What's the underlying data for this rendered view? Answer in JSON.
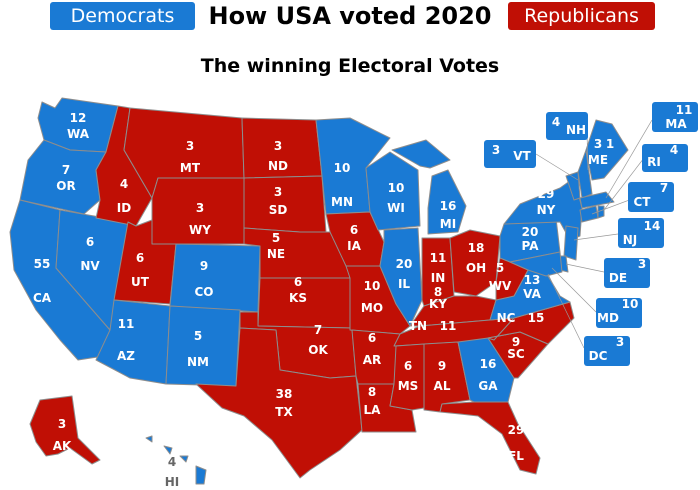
{
  "header": {
    "title": "How USA voted 2020",
    "subtitle": "The winning Electoral Votes",
    "legend_dem": "Democrats",
    "legend_rep": "Republicans"
  },
  "colors": {
    "dem": "#1a7ad4",
    "rep": "#c00f05"
  },
  "states": [
    {
      "abbr": "WA",
      "votes": "12",
      "party": "dem"
    },
    {
      "abbr": "OR",
      "votes": "7",
      "party": "dem"
    },
    {
      "abbr": "CA",
      "votes": "55",
      "party": "dem"
    },
    {
      "abbr": "NV",
      "votes": "6",
      "party": "dem"
    },
    {
      "abbr": "ID",
      "votes": "4",
      "party": "rep"
    },
    {
      "abbr": "MT",
      "votes": "3",
      "party": "rep"
    },
    {
      "abbr": "WY",
      "votes": "3",
      "party": "rep"
    },
    {
      "abbr": "UT",
      "votes": "6",
      "party": "rep"
    },
    {
      "abbr": "CO",
      "votes": "9",
      "party": "dem"
    },
    {
      "abbr": "AZ",
      "votes": "11",
      "party": "dem"
    },
    {
      "abbr": "NM",
      "votes": "5",
      "party": "dem"
    },
    {
      "abbr": "ND",
      "votes": "3",
      "party": "rep"
    },
    {
      "abbr": "SD",
      "votes": "3",
      "party": "rep"
    },
    {
      "abbr": "NE",
      "votes": "5",
      "party": "rep"
    },
    {
      "abbr": "KS",
      "votes": "6",
      "party": "rep"
    },
    {
      "abbr": "OK",
      "votes": "7",
      "party": "rep"
    },
    {
      "abbr": "TX",
      "votes": "38",
      "party": "rep"
    },
    {
      "abbr": "MN",
      "votes": "10",
      "party": "dem"
    },
    {
      "abbr": "IA",
      "votes": "6",
      "party": "rep"
    },
    {
      "abbr": "MO",
      "votes": "10",
      "party": "rep"
    },
    {
      "abbr": "AR",
      "votes": "6",
      "party": "rep"
    },
    {
      "abbr": "LA",
      "votes": "8",
      "party": "rep"
    },
    {
      "abbr": "WI",
      "votes": "10",
      "party": "dem"
    },
    {
      "abbr": "IL",
      "votes": "20",
      "party": "dem"
    },
    {
      "abbr": "MI",
      "votes": "16",
      "party": "dem"
    },
    {
      "abbr": "IN",
      "votes": "11",
      "party": "rep"
    },
    {
      "abbr": "OH",
      "votes": "18",
      "party": "rep"
    },
    {
      "abbr": "KY",
      "votes": "8",
      "party": "rep"
    },
    {
      "abbr": "TN",
      "votes": "11",
      "party": "rep"
    },
    {
      "abbr": "MS",
      "votes": "6",
      "party": "rep"
    },
    {
      "abbr": "AL",
      "votes": "9",
      "party": "rep"
    },
    {
      "abbr": "GA",
      "votes": "16",
      "party": "dem"
    },
    {
      "abbr": "FL",
      "votes": "29",
      "party": "rep"
    },
    {
      "abbr": "SC",
      "votes": "9",
      "party": "rep"
    },
    {
      "abbr": "NC",
      "votes": "15",
      "party": "rep"
    },
    {
      "abbr": "VA",
      "votes": "13",
      "party": "dem"
    },
    {
      "abbr": "WV",
      "votes": "5",
      "party": "rep"
    },
    {
      "abbr": "PA",
      "votes": "20",
      "party": "dem"
    },
    {
      "abbr": "NY",
      "votes": "29",
      "party": "dem"
    },
    {
      "abbr": "ME",
      "votes": "3",
      "party": "dem"
    },
    {
      "abbr": "ME_split",
      "votes": "1",
      "party": "rep"
    },
    {
      "abbr": "AK",
      "votes": "3",
      "party": "rep"
    },
    {
      "abbr": "HI",
      "votes": "4",
      "party": "dem"
    }
  ],
  "callouts": [
    {
      "abbr": "NH",
      "votes": "4"
    },
    {
      "abbr": "VT",
      "votes": "3"
    },
    {
      "abbr": "MA",
      "votes": "11"
    },
    {
      "abbr": "RI",
      "votes": "4"
    },
    {
      "abbr": "CT",
      "votes": "7"
    },
    {
      "abbr": "NJ",
      "votes": "14"
    },
    {
      "abbr": "DE",
      "votes": "3"
    },
    {
      "abbr": "MD",
      "votes": "10"
    },
    {
      "abbr": "DC",
      "votes": "3"
    }
  ]
}
